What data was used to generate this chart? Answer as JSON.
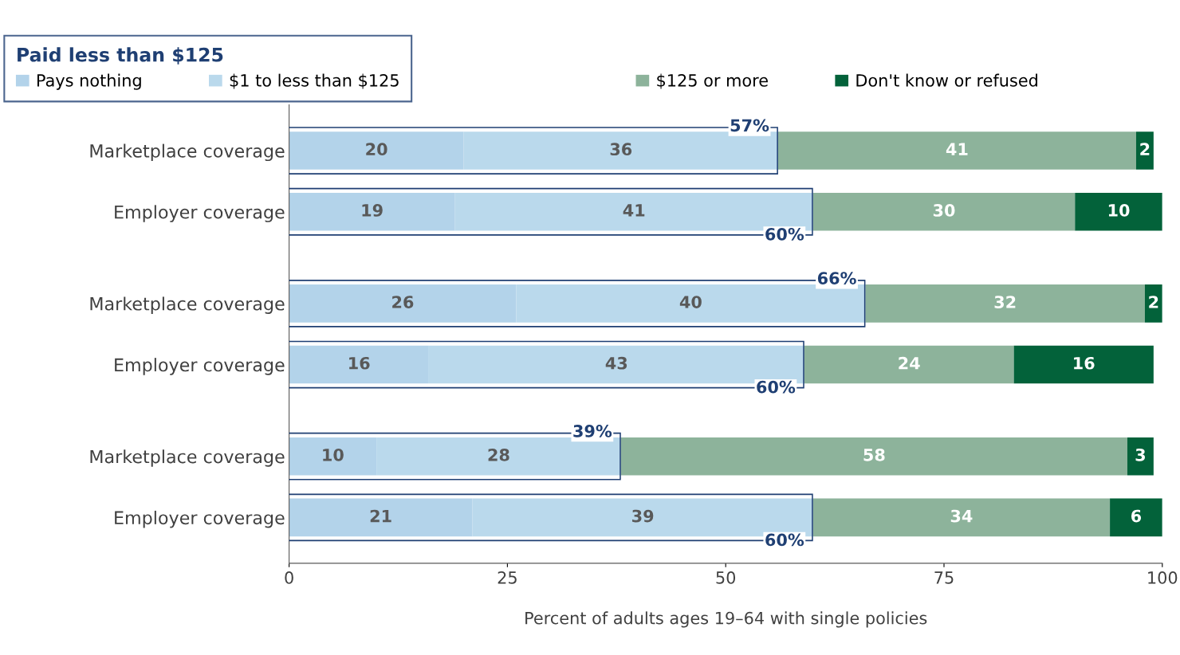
{
  "chart_data": {
    "type": "bar",
    "orientation": "horizontal",
    "stacked": true,
    "data_labels": true,
    "grid": false,
    "legend": "top left",
    "legend_title": "Paid less than $125",
    "xlabel": "Percent of adults ages 19–64 with single policies",
    "categories": [
      "Marketplace coverage",
      "Employer coverage",
      "Marketplace coverage",
      "Employer coverage",
      "Marketplace coverage",
      "Employer coverage"
    ],
    "series": [
      {
        "name": "Pays nothing",
        "color": "#b3d3ea",
        "values": [
          20,
          19,
          26,
          16,
          10,
          21
        ]
      },
      {
        "name": "$1 to less than $125",
        "color": "#bad9ec",
        "values": [
          36,
          41,
          40,
          43,
          28,
          39
        ]
      },
      {
        "name": "$125 or more",
        "color": "#8db39b",
        "values": [
          41,
          30,
          32,
          24,
          58,
          34
        ]
      },
      {
        "name": "Don't know or refused",
        "color": "#03623a",
        "values": [
          2,
          10,
          2,
          16,
          3,
          6
        ]
      }
    ],
    "annotations": [
      "57%",
      "60%",
      "66%",
      "60%",
      "39%",
      "60%"
    ],
    "xlim": [
      0,
      100
    ],
    "xticks": [
      0,
      25,
      50,
      75,
      100
    ]
  }
}
